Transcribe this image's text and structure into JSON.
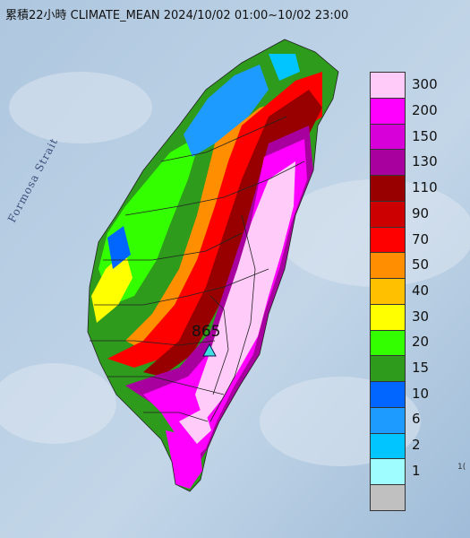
{
  "title": "累積22小時 CLIMATE_MEAN 2024/10/02 01:00~10/02 23:00",
  "strait_label": "Formosa Strait",
  "max_value_label": "865",
  "edge_label": "1(",
  "legend": [
    {
      "label": "300",
      "color": "#ffccf9"
    },
    {
      "label": "200",
      "color": "#ff00ff"
    },
    {
      "label": "150",
      "color": "#d800d8"
    },
    {
      "label": "130",
      "color": "#a8009f"
    },
    {
      "label": "110",
      "color": "#980000"
    },
    {
      "label": "90",
      "color": "#cc0000"
    },
    {
      "label": "70",
      "color": "#ff0000"
    },
    {
      "label": "50",
      "color": "#ff8f00"
    },
    {
      "label": "40",
      "color": "#ffc000"
    },
    {
      "label": "30",
      "color": "#ffff00"
    },
    {
      "label": "20",
      "color": "#33ff00"
    },
    {
      "label": "15",
      "color": "#2e9b1c"
    },
    {
      "label": "10",
      "color": "#0066ff"
    },
    {
      "label": "6",
      "color": "#1e9bff"
    },
    {
      "label": "2",
      "color": "#00c5ff"
    },
    {
      "label": "1",
      "color": "#9ffcff"
    },
    {
      "label": "",
      "color": "#c0c0c0"
    }
  ]
}
